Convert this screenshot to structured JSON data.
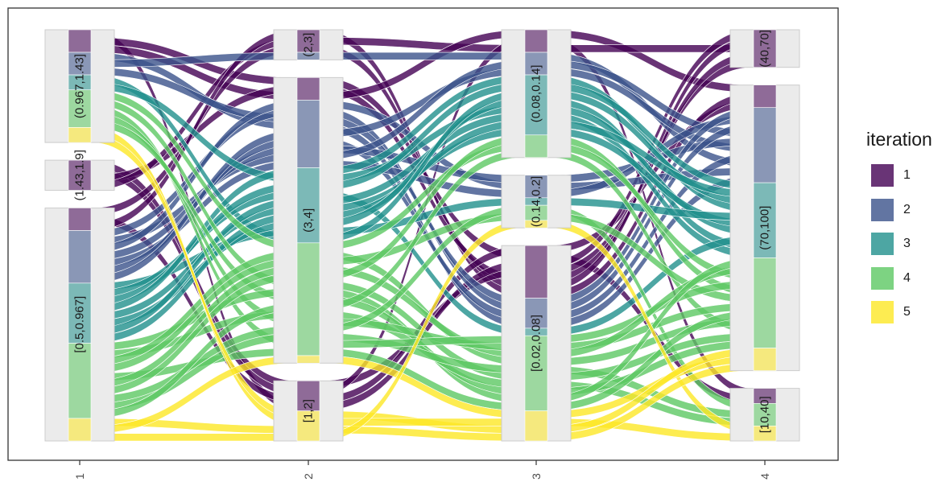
{
  "chart_data": {
    "type": "alluvial",
    "x_ticks": [
      "1",
      "2",
      "3",
      "4"
    ],
    "axes": [
      {
        "axis": "1",
        "strata": [
          {
            "label": "(0.967,1.43]",
            "n": 15,
            "counts": [
              3,
              3,
              2,
              5,
              2
            ]
          },
          {
            "label": "(1.43,1.9]",
            "n": 4,
            "counts": [
              4,
              0,
              0,
              0,
              0
            ]
          },
          {
            "label": "[0.5,0.967]",
            "n": 31,
            "counts": [
              3,
              7,
              8,
              10,
              3
            ]
          }
        ]
      },
      {
        "axis": "2",
        "strata": [
          {
            "label": "(2,3]",
            "n": 4,
            "counts": [
              3,
              1,
              0,
              0,
              0
            ]
          },
          {
            "label": "(3,4]",
            "n": 38,
            "counts": [
              3,
              9,
              10,
              15,
              1
            ]
          },
          {
            "label": "[1,2]",
            "n": 8,
            "counts": [
              4,
              0,
              0,
              0,
              4
            ]
          }
        ]
      },
      {
        "axis": "3",
        "strata": [
          {
            "label": "(0.08,0.14]",
            "n": 17,
            "counts": [
              3,
              3,
              8,
              3,
              0
            ]
          },
          {
            "label": "(0.14,0.2]",
            "n": 7,
            "counts": [
              0,
              3,
              1,
              2,
              1
            ]
          },
          {
            "label": "[0.02,0.08]",
            "n": 26,
            "counts": [
              7,
              4,
              1,
              10,
              4
            ]
          }
        ]
      },
      {
        "axis": "4",
        "strata": [
          {
            "label": "(40,70]",
            "n": 5,
            "counts": [
              5,
              0,
              0,
              0,
              0
            ]
          },
          {
            "label": "(70,100]",
            "n": 38,
            "counts": [
              3,
              10,
              10,
              12,
              3
            ]
          },
          {
            "label": "[10,40]",
            "n": 7,
            "counts": [
              2,
              0,
              0,
              3,
              2
            ]
          }
        ]
      }
    ],
    "legend": {
      "title": "iteration",
      "position": "right",
      "items": [
        {
          "label": "1",
          "color": "#440154"
        },
        {
          "label": "2",
          "color": "#3b528b"
        },
        {
          "label": "3",
          "color": "#21908c"
        },
        {
          "label": "4",
          "color": "#5dc863"
        },
        {
          "label": "5",
          "color": "#fde725"
        }
      ]
    },
    "grid": false,
    "panel_border": true
  }
}
